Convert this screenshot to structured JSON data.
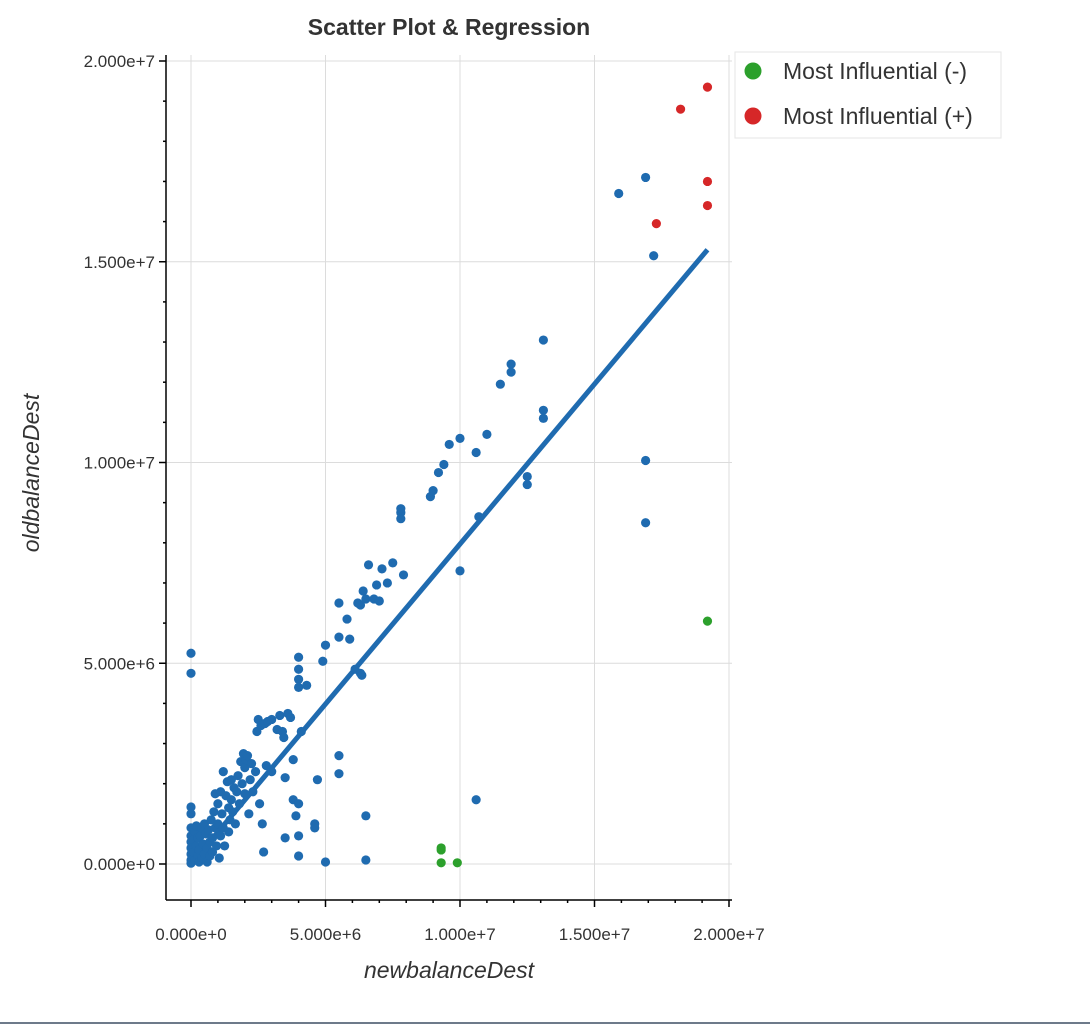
{
  "chart_data": {
    "type": "scatter",
    "title": "Scatter Plot & Regression",
    "xlabel": "newbalanceDest",
    "ylabel": "oldbalanceDest",
    "xlim": [
      -1000000,
      20000000
    ],
    "ylim": [
      -1000000,
      20000000
    ],
    "xticks": [
      0,
      5000000,
      10000000,
      15000000,
      20000000
    ],
    "xtick_labels": [
      "0.000e+0",
      "5.000e+6",
      "1.000e+7",
      "1.500e+7",
      "2.000e+7"
    ],
    "yticks": [
      0,
      5000000,
      10000000,
      15000000,
      20000000
    ],
    "ytick_labels": [
      "0.000e+0",
      "5.000e+6",
      "1.000e+7",
      "1.500e+7",
      "2.000e+7"
    ],
    "grid": true,
    "legend_position": "top-right-outside",
    "regression_line": {
      "color": "#1f6bb0",
      "points": [
        [
          0,
          0
        ],
        [
          19200000,
          15300000
        ]
      ]
    },
    "series": [
      {
        "color": "#1f6bb0",
        "points": [
          [
            0,
            5250000
          ],
          [
            0,
            4750000
          ],
          [
            0,
            1420000
          ],
          [
            0,
            1250000
          ],
          [
            0,
            900000
          ],
          [
            0,
            700000
          ],
          [
            0,
            550000
          ],
          [
            0,
            400000
          ],
          [
            0,
            250000
          ],
          [
            0,
            100000
          ],
          [
            0,
            20000
          ],
          [
            100000,
            600000
          ],
          [
            100000,
            300000
          ],
          [
            150000,
            800000
          ],
          [
            150000,
            100000
          ],
          [
            200000,
            450000
          ],
          [
            200000,
            950000
          ],
          [
            250000,
            200000
          ],
          [
            250000,
            650000
          ],
          [
            300000,
            50000
          ],
          [
            300000,
            350000
          ],
          [
            350000,
            700000
          ],
          [
            400000,
            900000
          ],
          [
            400000,
            150000
          ],
          [
            450000,
            500000
          ],
          [
            500000,
            1000000
          ],
          [
            500000,
            250000
          ],
          [
            550000,
            750000
          ],
          [
            600000,
            400000
          ],
          [
            600000,
            50000
          ],
          [
            650000,
            850000
          ],
          [
            700000,
            550000
          ],
          [
            700000,
            200000
          ],
          [
            750000,
            1100000
          ],
          [
            800000,
            300000
          ],
          [
            800000,
            650000
          ],
          [
            850000,
            1300000
          ],
          [
            900000,
            1750000
          ],
          [
            900000,
            900000
          ],
          [
            950000,
            450000
          ],
          [
            1000000,
            1500000
          ],
          [
            1000000,
            1000000
          ],
          [
            1050000,
            150000
          ],
          [
            1100000,
            1800000
          ],
          [
            1100000,
            700000
          ],
          [
            1150000,
            1250000
          ],
          [
            1200000,
            2300000
          ],
          [
            1200000,
            900000
          ],
          [
            1250000,
            450000
          ],
          [
            1300000,
            1700000
          ],
          [
            1350000,
            2050000
          ],
          [
            1400000,
            1400000
          ],
          [
            1400000,
            800000
          ],
          [
            1450000,
            1100000
          ],
          [
            1500000,
            2100000
          ],
          [
            1500000,
            1600000
          ],
          [
            1550000,
            1300000
          ],
          [
            1600000,
            1900000
          ],
          [
            1650000,
            1000000
          ],
          [
            1700000,
            1800000
          ],
          [
            1750000,
            2200000
          ],
          [
            1800000,
            1500000
          ],
          [
            1850000,
            2550000
          ],
          [
            1900000,
            2000000
          ],
          [
            1950000,
            2750000
          ],
          [
            2000000,
            2400000
          ],
          [
            2000000,
            1750000
          ],
          [
            2050000,
            2600000
          ],
          [
            2100000,
            2700000
          ],
          [
            2150000,
            1250000
          ],
          [
            2200000,
            2100000
          ],
          [
            2250000,
            2500000
          ],
          [
            2300000,
            1800000
          ],
          [
            2400000,
            2300000
          ],
          [
            2450000,
            3300000
          ],
          [
            2500000,
            3600000
          ],
          [
            2550000,
            1500000
          ],
          [
            2600000,
            3450000
          ],
          [
            2650000,
            1000000
          ],
          [
            2700000,
            300000
          ],
          [
            2750000,
            3500000
          ],
          [
            2800000,
            2450000
          ],
          [
            2850000,
            3550000
          ],
          [
            3000000,
            3600000
          ],
          [
            3000000,
            2300000
          ],
          [
            3200000,
            3350000
          ],
          [
            3300000,
            3700000
          ],
          [
            3400000,
            3300000
          ],
          [
            3450000,
            3150000
          ],
          [
            3500000,
            2150000
          ],
          [
            3500000,
            650000
          ],
          [
            3600000,
            3750000
          ],
          [
            3700000,
            3650000
          ],
          [
            3800000,
            2600000
          ],
          [
            3800000,
            1600000
          ],
          [
            3900000,
            1200000
          ],
          [
            4000000,
            5150000
          ],
          [
            4000000,
            4850000
          ],
          [
            4000000,
            4600000
          ],
          [
            4000000,
            4400000
          ],
          [
            4000000,
            200000
          ],
          [
            4000000,
            1500000
          ],
          [
            4000000,
            700000
          ],
          [
            4100000,
            3300000
          ],
          [
            4300000,
            4450000
          ],
          [
            4600000,
            1000000
          ],
          [
            4600000,
            900000
          ],
          [
            4700000,
            2100000
          ],
          [
            4900000,
            5050000
          ],
          [
            5000000,
            5450000
          ],
          [
            5000000,
            50000
          ],
          [
            5500000,
            6500000
          ],
          [
            5500000,
            5650000
          ],
          [
            5500000,
            2700000
          ],
          [
            5500000,
            2250000
          ],
          [
            5800000,
            6100000
          ],
          [
            5900000,
            5600000
          ],
          [
            6100000,
            4850000
          ],
          [
            6200000,
            6500000
          ],
          [
            6300000,
            6450000
          ],
          [
            6300000,
            4750000
          ],
          [
            6350000,
            4700000
          ],
          [
            6400000,
            6800000
          ],
          [
            6500000,
            6600000
          ],
          [
            6500000,
            1200000
          ],
          [
            6500000,
            100000
          ],
          [
            6600000,
            7450000
          ],
          [
            6800000,
            6600000
          ],
          [
            6900000,
            6950000
          ],
          [
            7000000,
            6550000
          ],
          [
            7100000,
            7350000
          ],
          [
            7300000,
            7000000
          ],
          [
            7500000,
            7500000
          ],
          [
            7800000,
            8750000
          ],
          [
            7800000,
            8600000
          ],
          [
            7800000,
            8850000
          ],
          [
            7900000,
            7200000
          ],
          [
            8900000,
            9150000
          ],
          [
            9000000,
            9300000
          ],
          [
            9200000,
            9750000
          ],
          [
            9400000,
            9950000
          ],
          [
            9600000,
            10450000
          ],
          [
            10000000,
            10600000
          ],
          [
            10000000,
            7300000
          ],
          [
            10600000,
            10250000
          ],
          [
            10700000,
            8650000
          ],
          [
            11000000,
            10700000
          ],
          [
            11500000,
            11950000
          ],
          [
            11900000,
            12450000
          ],
          [
            11900000,
            12250000
          ],
          [
            12500000,
            9650000
          ],
          [
            12500000,
            9450000
          ],
          [
            13100000,
            13050000
          ],
          [
            13100000,
            11300000
          ],
          [
            13100000,
            11100000
          ],
          [
            15900000,
            16700000
          ],
          [
            16900000,
            17100000
          ],
          [
            17200000,
            15150000
          ],
          [
            16900000,
            10050000
          ],
          [
            16900000,
            8500000
          ],
          [
            10600000,
            1600000
          ]
        ]
      },
      {
        "name": "Most Influential (-)",
        "color": "#2ca02c",
        "points": [
          [
            9300000,
            400000
          ],
          [
            9300000,
            350000
          ],
          [
            9300000,
            30000
          ],
          [
            9900000,
            30000
          ],
          [
            19200000,
            6050000
          ]
        ]
      },
      {
        "name": "Most Influential (+)",
        "color": "#d62728",
        "points": [
          [
            19200000,
            19350000
          ],
          [
            18200000,
            18800000
          ],
          [
            19200000,
            17000000
          ],
          [
            19200000,
            16400000
          ],
          [
            17300000,
            15950000
          ]
        ]
      }
    ]
  }
}
